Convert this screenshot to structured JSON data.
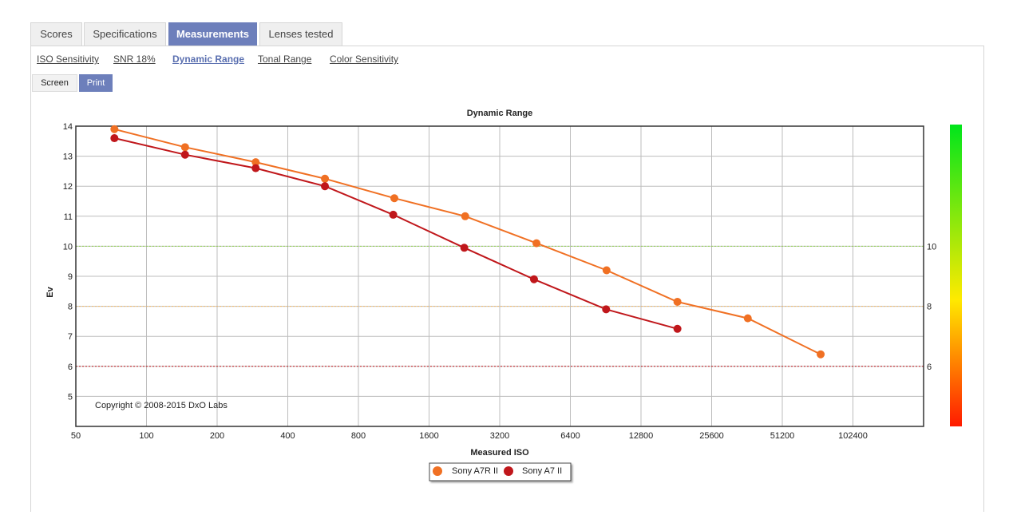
{
  "tabs": [
    {
      "label": "Scores",
      "active": false
    },
    {
      "label": "Specifications",
      "active": false
    },
    {
      "label": "Measurements",
      "active": true
    },
    {
      "label": "Lenses tested",
      "active": false
    }
  ],
  "subnav": [
    {
      "label": "ISO Sensitivity",
      "active": false
    },
    {
      "label": "SNR 18%",
      "active": false
    },
    {
      "label": "Dynamic Range",
      "active": true
    },
    {
      "label": "Tonal Range",
      "active": false
    },
    {
      "label": "Color Sensitivity",
      "active": false
    }
  ],
  "view_buttons": {
    "screen": "Screen",
    "print": "Print"
  },
  "copyright": "Copyright © 2008-2015 DxO Labs",
  "colors": {
    "accent": "#6d7fbb",
    "series_a7rii": "#f07023",
    "series_a7ii": "#c0171b",
    "ref10": "#8fd44a",
    "ref8": "#f3b766",
    "ref6": "#c0171b"
  },
  "chart_data": {
    "type": "line",
    "title": "Dynamic Range",
    "xlabel": "Measured ISO",
    "ylabel": "Ev",
    "x_scale": "log2",
    "x_ticks": [
      50,
      100,
      200,
      400,
      800,
      1600,
      3200,
      6400,
      12800,
      25600,
      51200,
      102400
    ],
    "xlim": [
      50,
      204800
    ],
    "ylim": [
      4,
      14
    ],
    "y_ticks": [
      5,
      6,
      7,
      8,
      9,
      10,
      11,
      12,
      13,
      14
    ],
    "grid": true,
    "legend": "bottom-center",
    "reference_lines": [
      {
        "value": 10,
        "label": "10",
        "color": "#8fd44a"
      },
      {
        "value": 8,
        "label": "8",
        "color": "#f3b766"
      },
      {
        "value": 6,
        "label": "6",
        "color": "#c0171b"
      }
    ],
    "series": [
      {
        "name": "Sony A7R II",
        "color": "#f07023",
        "x": [
          73,
          146,
          292,
          576,
          1138,
          2280,
          4590,
          9130,
          18300,
          36500,
          74600
        ],
        "y": [
          13.9,
          13.3,
          12.8,
          12.25,
          11.6,
          11.0,
          10.1,
          9.2,
          8.15,
          7.6,
          6.4
        ]
      },
      {
        "name": "Sony A7 II",
        "color": "#c0171b",
        "x": [
          73,
          146,
          292,
          576,
          1126,
          2260,
          4480,
          9090,
          18300
        ],
        "y": [
          13.6,
          13.05,
          12.6,
          12.0,
          11.05,
          9.95,
          8.9,
          7.9,
          7.25
        ]
      }
    ]
  }
}
